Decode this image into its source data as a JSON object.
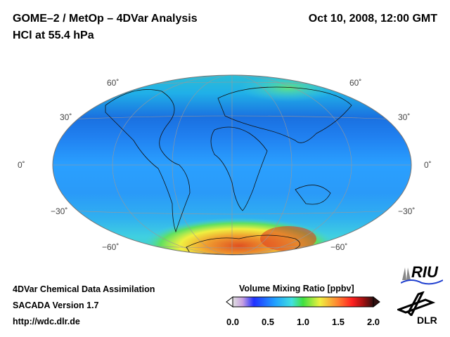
{
  "header": {
    "title": "GOME–2 / MetOp – 4DVar Analysis",
    "subtitle": "HCl at 55.4 hPa",
    "datetime": "Oct 10, 2008, 12:00 GMT"
  },
  "map": {
    "latitude_labels": [
      "60˚",
      "30˚",
      "0˚",
      "−30˚",
      "−60˚"
    ]
  },
  "footer": {
    "line1": "4DVar Chemical Data Assimilation",
    "line2": "SACADA Version 1.7",
    "url": "http://wdc.dlr.de"
  },
  "colorbar": {
    "title": "Volume Mixing Ratio [ppbv]",
    "ticks": [
      "0.0",
      "0.5",
      "1.0",
      "1.5",
      "2.0"
    ],
    "range": [
      0,
      2
    ],
    "colors": [
      "#e0e0e0",
      "#c8a0e0",
      "#2030ff",
      "#20a0ff",
      "#40e0e0",
      "#40e040",
      "#f0f040",
      "#ff8030",
      "#ff2020",
      "#a01010",
      "#301010"
    ]
  },
  "logos": {
    "riu": "RIU",
    "dlr": "DLR"
  }
}
